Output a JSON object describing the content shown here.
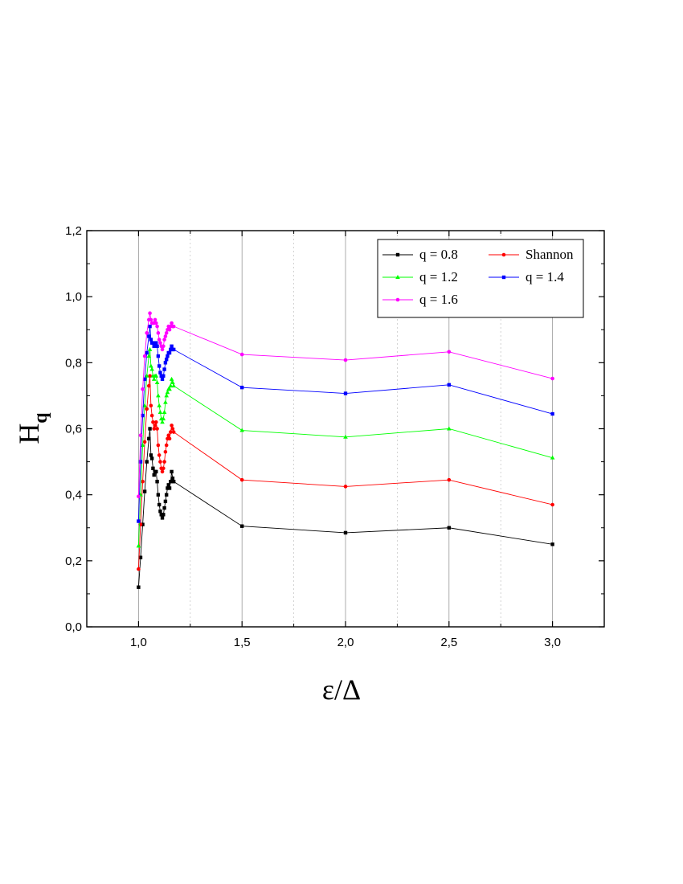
{
  "chart_data": {
    "type": "line",
    "title": "",
    "xlabel": "ε/Δ",
    "ylabel": {
      "main": "H",
      "sub": "q"
    },
    "xlim": [
      0.75,
      3.25
    ],
    "ylim": [
      0.0,
      1.2
    ],
    "xticks": [
      {
        "value": 1.0,
        "label": "1,0"
      },
      {
        "value": 1.5,
        "label": "1,5"
      },
      {
        "value": 2.0,
        "label": "2,0"
      },
      {
        "value": 2.5,
        "label": "2,5"
      },
      {
        "value": 3.0,
        "label": "3,0"
      }
    ],
    "yticks": [
      {
        "value": 0.0,
        "label": "0,0"
      },
      {
        "value": 0.2,
        "label": "0,2"
      },
      {
        "value": 0.4,
        "label": "0,4"
      },
      {
        "value": 0.6,
        "label": "0,6"
      },
      {
        "value": 0.8,
        "label": "0,8"
      },
      {
        "value": 1.0,
        "label": "1,0"
      },
      {
        "value": 1.2,
        "label": "1,2"
      }
    ],
    "grid": {
      "major_x": true,
      "minor_x": true,
      "y": false
    },
    "legend": {
      "position": "top-right",
      "columns": 2
    },
    "x": [
      1.0,
      1.01,
      1.02,
      1.03,
      1.04,
      1.05,
      1.055,
      1.06,
      1.065,
      1.07,
      1.075,
      1.08,
      1.085,
      1.09,
      1.095,
      1.1,
      1.105,
      1.11,
      1.115,
      1.12,
      1.125,
      1.13,
      1.135,
      1.14,
      1.145,
      1.15,
      1.155,
      1.16,
      1.165,
      1.17,
      1.5,
      2.0,
      2.5,
      3.0
    ],
    "series": [
      {
        "name": "q = 0.8",
        "color": "#000000",
        "marker": "square",
        "values": [
          0.12,
          0.21,
          0.31,
          0.41,
          0.5,
          0.57,
          0.6,
          0.52,
          0.51,
          0.48,
          0.46,
          0.47,
          0.47,
          0.44,
          0.4,
          0.37,
          0.35,
          0.34,
          0.33,
          0.34,
          0.36,
          0.38,
          0.4,
          0.42,
          0.43,
          0.42,
          0.44,
          0.47,
          0.45,
          0.44,
          0.305,
          0.285,
          0.3,
          0.25
        ]
      },
      {
        "name": "Shannon",
        "color": "#ff0000",
        "marker": "circle",
        "values": [
          0.175,
          0.31,
          0.44,
          0.56,
          0.66,
          0.73,
          0.76,
          0.67,
          0.64,
          0.62,
          0.6,
          0.61,
          0.62,
          0.6,
          0.55,
          0.52,
          0.5,
          0.48,
          0.47,
          0.48,
          0.5,
          0.53,
          0.55,
          0.57,
          0.58,
          0.57,
          0.59,
          0.61,
          0.6,
          0.59,
          0.445,
          0.425,
          0.445,
          0.37
        ]
      },
      {
        "name": "q = 1.2",
        "color": "#00ff00",
        "marker": "triangle",
        "values": [
          0.245,
          0.4,
          0.55,
          0.67,
          0.76,
          0.82,
          0.84,
          0.79,
          0.78,
          0.76,
          0.75,
          0.76,
          0.76,
          0.74,
          0.7,
          0.67,
          0.65,
          0.63,
          0.62,
          0.63,
          0.65,
          0.68,
          0.7,
          0.71,
          0.72,
          0.72,
          0.73,
          0.75,
          0.74,
          0.73,
          0.595,
          0.575,
          0.6,
          0.512
        ]
      },
      {
        "name": "q = 1.4",
        "color": "#0000ff",
        "marker": "square",
        "values": [
          0.32,
          0.5,
          0.64,
          0.75,
          0.83,
          0.88,
          0.91,
          0.87,
          0.86,
          0.86,
          0.85,
          0.86,
          0.86,
          0.85,
          0.82,
          0.79,
          0.77,
          0.76,
          0.75,
          0.76,
          0.78,
          0.8,
          0.81,
          0.82,
          0.83,
          0.83,
          0.84,
          0.85,
          0.84,
          0.84,
          0.725,
          0.707,
          0.733,
          0.645
        ]
      },
      {
        "name": "q = 1.6",
        "color": "#ff00ff",
        "marker": "circle",
        "values": [
          0.395,
          0.58,
          0.72,
          0.82,
          0.89,
          0.93,
          0.95,
          0.93,
          0.92,
          0.92,
          0.92,
          0.93,
          0.92,
          0.91,
          0.89,
          0.87,
          0.86,
          0.85,
          0.84,
          0.85,
          0.87,
          0.88,
          0.89,
          0.9,
          0.91,
          0.9,
          0.91,
          0.92,
          0.91,
          0.91,
          0.825,
          0.808,
          0.833,
          0.752
        ]
      }
    ]
  }
}
